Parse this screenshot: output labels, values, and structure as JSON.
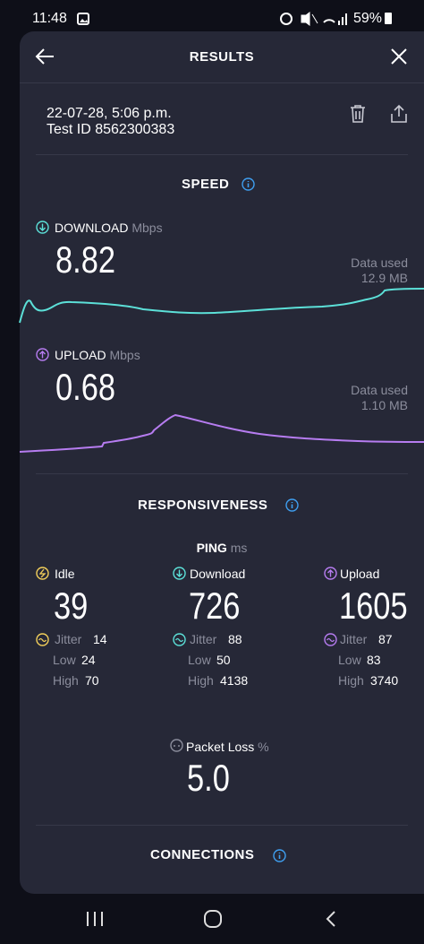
{
  "status_bar": {
    "time": "11:48",
    "battery": "59%"
  },
  "header": {
    "title": "RESULTS"
  },
  "test": {
    "date": "22-07-28, 5:06 p.m.",
    "test_id": "Test ID 8562300383"
  },
  "speed": {
    "title": "SPEED",
    "download": {
      "label": "DOWNLOAD",
      "unit": "Mbps",
      "value": 8.82,
      "data_used_label": "Data used",
      "data_used": "12.9 MB"
    },
    "upload": {
      "label": "UPLOAD",
      "unit": "Mbps",
      "value": 0.68,
      "data_used_label": "Data used",
      "data_used": "1.10 MB"
    }
  },
  "responsiveness": {
    "title": "RESPONSIVENESS",
    "ping_label": "PING",
    "ping_unit": "ms",
    "columns": [
      {
        "label": "Idle",
        "value": 39,
        "jitter_label": "Jitter",
        "jitter": 14,
        "low_label": "Low",
        "low": 24,
        "high_label": "High",
        "high": 70
      },
      {
        "label": "Download",
        "value": 726,
        "jitter_label": "Jitter",
        "jitter": 88,
        "low_label": "Low",
        "low": 50,
        "high_label": "High",
        "high": 4138
      },
      {
        "label": "Upload",
        "value": 1605,
        "jitter_label": "Jitter",
        "jitter": 87,
        "low_label": "Low",
        "low": 83,
        "high_label": "High",
        "high": 3740
      }
    ]
  },
  "packet_loss": {
    "label": "Packet Loss",
    "unit": "%",
    "value": "5.0"
  },
  "connections": {
    "title": "CONNECTIONS"
  }
}
